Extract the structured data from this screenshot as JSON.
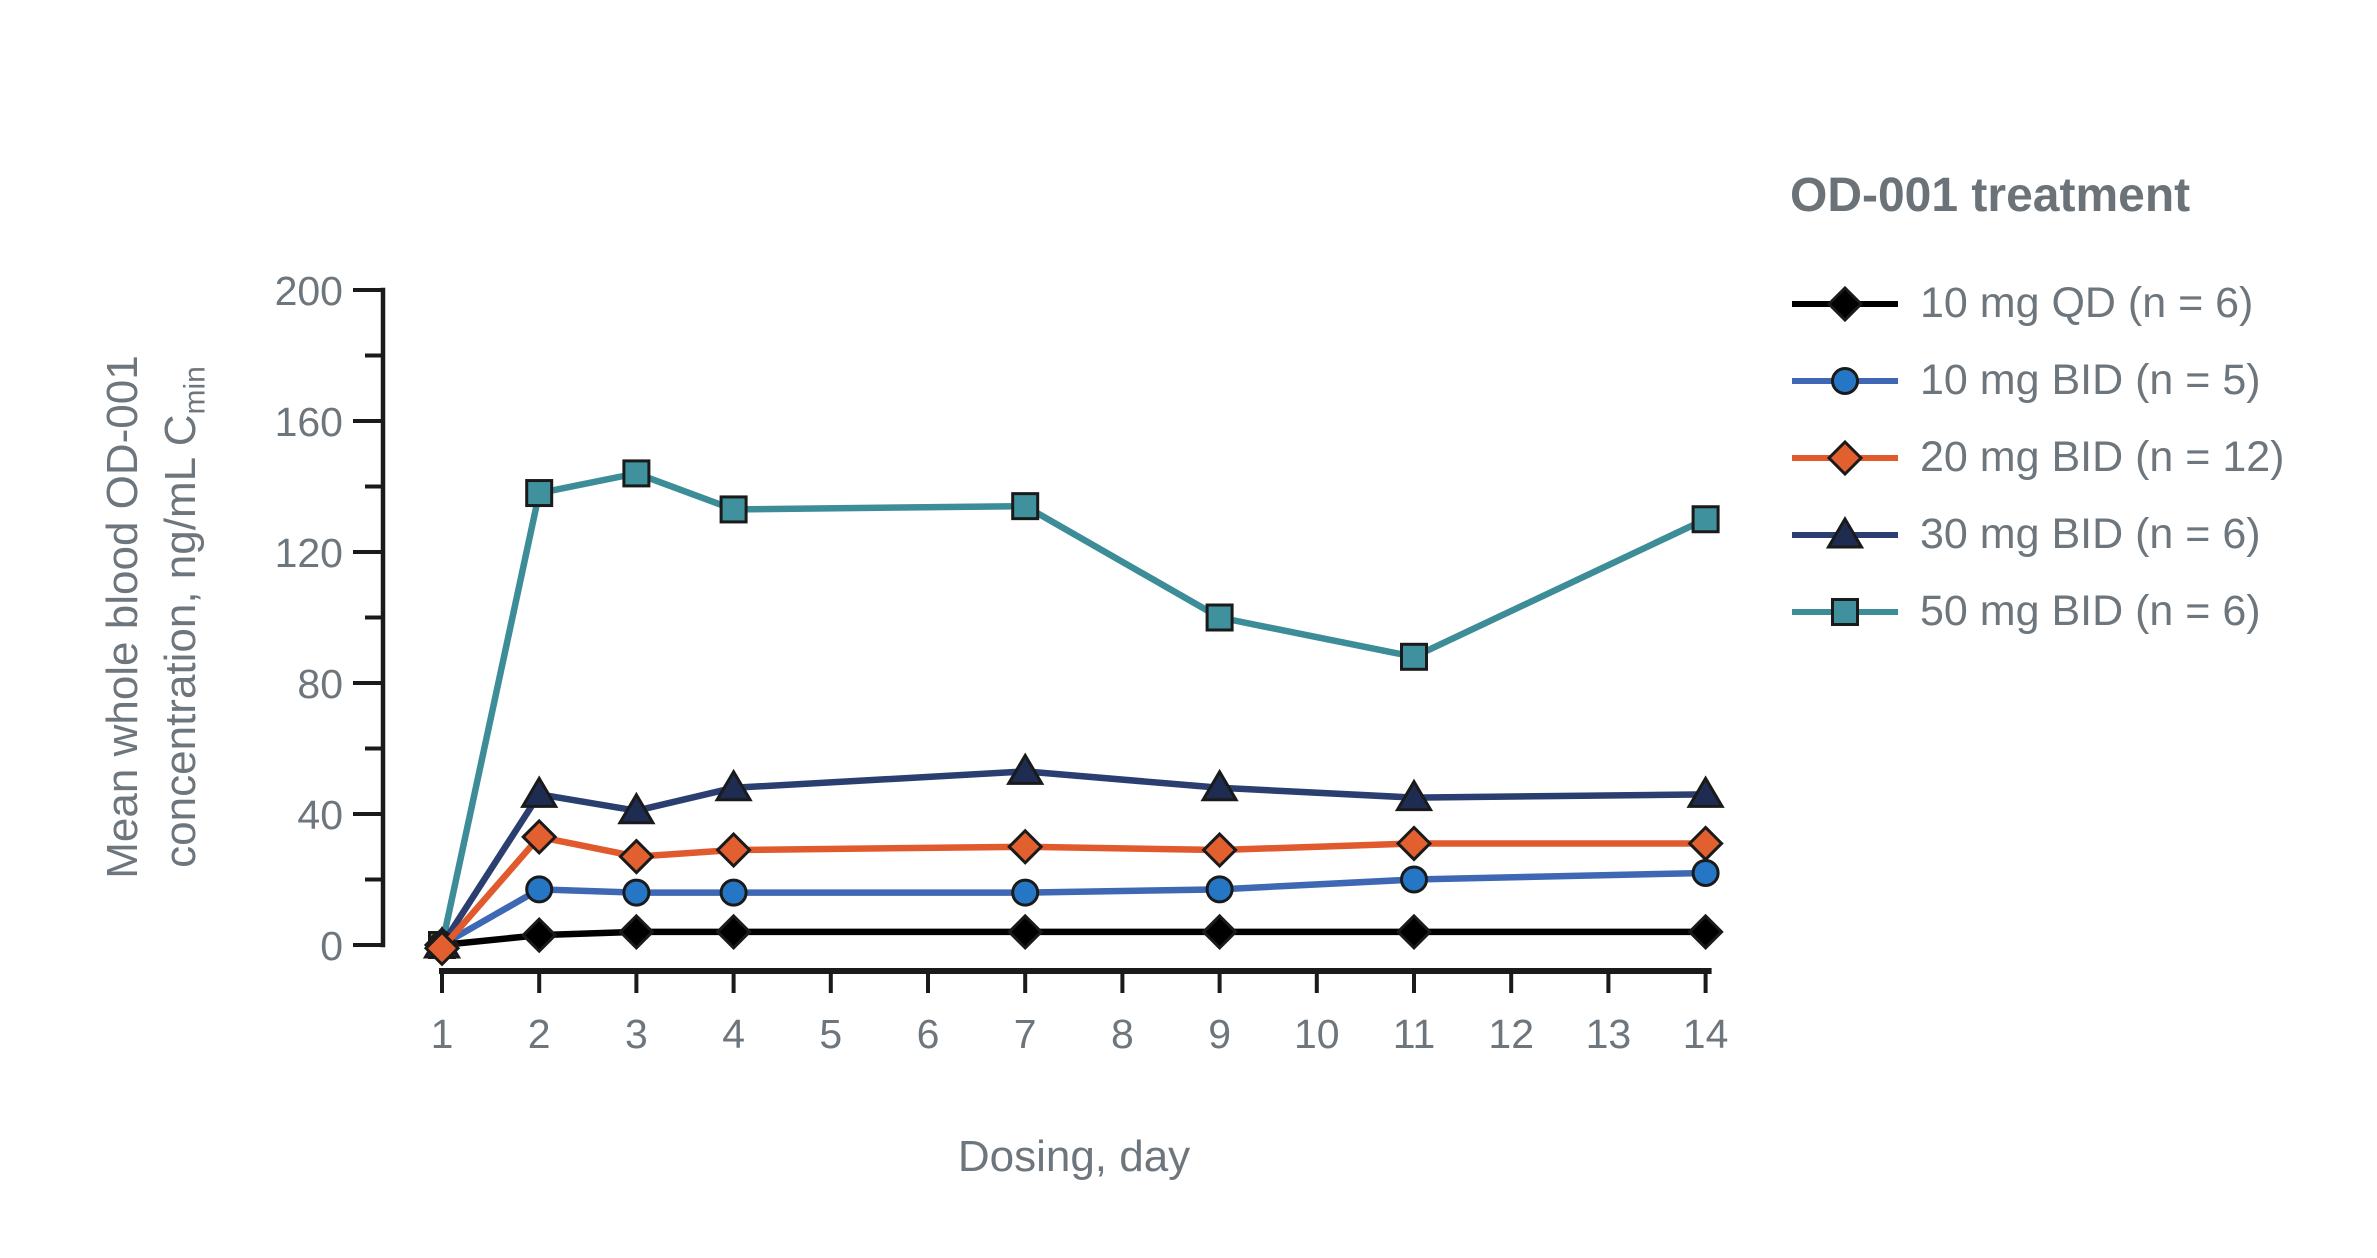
{
  "chart_data": {
    "type": "line",
    "xlabel": "Dosing, day",
    "ylabel_line1": "Mean whole blood OD-001",
    "ylabel_line2": "concentration, ng/mL C",
    "ylabel_subscript": "min",
    "x": [
      1,
      2,
      3,
      4,
      7,
      9,
      11,
      14
    ],
    "x_ticks": [
      1,
      2,
      3,
      4,
      5,
      6,
      7,
      8,
      9,
      10,
      11,
      12,
      13,
      14
    ],
    "ylim": [
      0,
      200
    ],
    "y_major_step": 40,
    "y_minor_step": 20,
    "grid": "off",
    "legend_position": "right",
    "legend_title": "OD-001 treatment",
    "axis_color": "#1a1a1a",
    "text_color": "#6e767d",
    "background_color": "#ffffff",
    "series": [
      {
        "name": "10 mg QD (n = 6)",
        "marker": "diamond",
        "line_color": "#000000",
        "fill_color": "#000000",
        "values": [
          0,
          3,
          4,
          4,
          4,
          4,
          4,
          4
        ]
      },
      {
        "name": "10 mg BID (n = 5)",
        "marker": "circle",
        "line_color": "#3f68b4",
        "fill_color": "#2577c5",
        "values": [
          0,
          17,
          16,
          16,
          16,
          17,
          20,
          22
        ]
      },
      {
        "name": "20 mg BID (n = 12)",
        "marker": "diamond",
        "line_color": "#e15a2d",
        "fill_color": "#e2602f",
        "values": [
          -1,
          33,
          27,
          29,
          30,
          29,
          31,
          31
        ]
      },
      {
        "name": "30 mg BID (n = 6)",
        "marker": "triangle",
        "line_color": "#2a3e70",
        "fill_color": "#1e2c52",
        "values": [
          0,
          46,
          41,
          48,
          53,
          48,
          45,
          46
        ]
      },
      {
        "name": "50 mg BID (n = 6)",
        "marker": "square",
        "line_color": "#3d8d98",
        "fill_color": "#3f929d",
        "values": [
          0,
          138,
          144,
          133,
          134,
          100,
          88,
          130
        ]
      }
    ]
  }
}
